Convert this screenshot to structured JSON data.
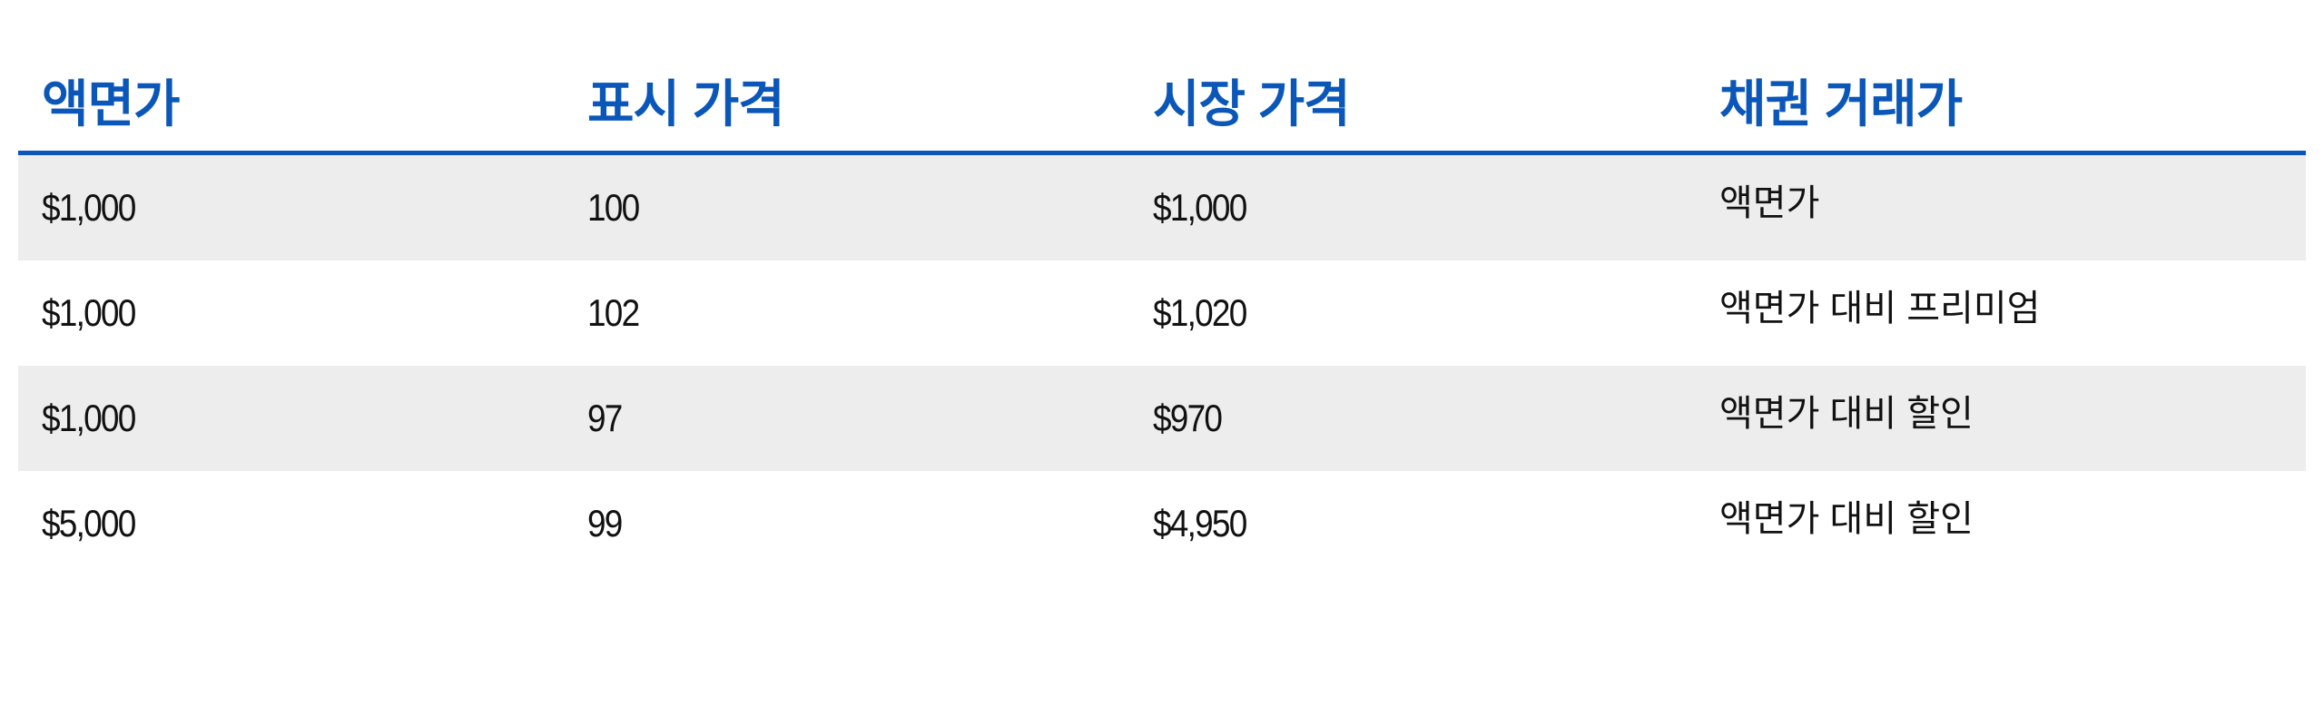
{
  "table": {
    "headers": [
      "액면가",
      "표시 가격",
      "시장 가격",
      "채권 거래가"
    ],
    "rows": [
      [
        "$1,000",
        "100",
        "$1,000",
        "액면가"
      ],
      [
        "$1,000",
        "102",
        "$1,020",
        "액면가 대비 프리미엄"
      ],
      [
        "$1,000",
        "97",
        "$970",
        "액면가 대비 할인"
      ],
      [
        "$5,000",
        "99",
        "$4,950",
        "액면가 대비 할인"
      ]
    ]
  },
  "colors": {
    "accent": "#0b57b9",
    "stripe": "#ededed"
  }
}
